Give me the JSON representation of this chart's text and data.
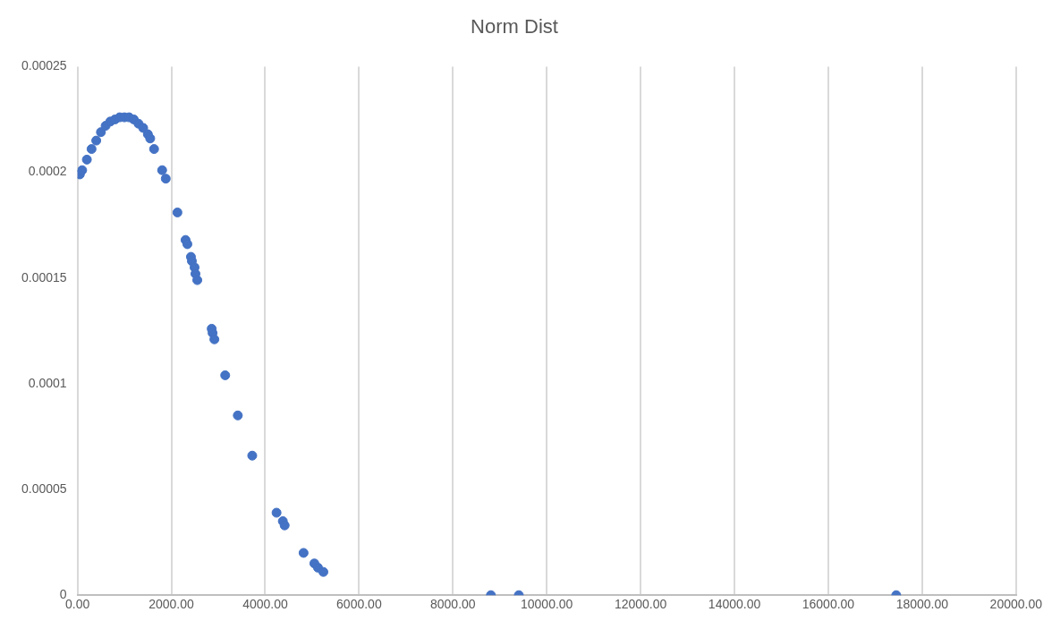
{
  "chart_data": {
    "type": "scatter",
    "title": "Norm Dist",
    "x": [
      50,
      100,
      200,
      300,
      400,
      500,
      600,
      700,
      800,
      900,
      1000,
      1100,
      1200,
      1300,
      1400,
      1500,
      1550,
      1632,
      1804,
      1881,
      2130,
      2303,
      2342,
      2418,
      2438,
      2495,
      2514,
      2553,
      2860,
      2879,
      2917,
      3148,
      3417,
      3724,
      4242,
      4376,
      4415,
      4818,
      5048,
      5125,
      5240,
      8810,
      9405,
      17447
    ],
    "series": [
      {
        "color": "#4472c4",
        "values": [
          0.000199,
          0.000201,
          0.000206,
          0.000211,
          0.000215,
          0.000219,
          0.000222,
          0.000224,
          0.000225,
          0.000226,
          0.000226,
          0.000226,
          0.000225,
          0.000223,
          0.000221,
          0.000218,
          0.000216,
          0.000211,
          0.000201,
          0.000197,
          0.000181,
          0.000168,
          0.000166,
          0.00016,
          0.000158,
          0.000155,
          0.000152,
          0.000149,
          0.000126,
          0.000124,
          0.000121,
          0.000104,
          8.5e-05,
          6.6e-05,
          3.9e-05,
          3.5e-05,
          3.3e-05,
          2e-05,
          1.5e-05,
          1.3e-05,
          1.1e-05,
          0,
          0,
          0
        ]
      }
    ],
    "xlim": [
      0,
      20000
    ],
    "xticks": [
      {
        "value": 0,
        "label": "0.00"
      },
      {
        "value": 2000,
        "label": "2000.00"
      },
      {
        "value": 4000,
        "label": "4000.00"
      },
      {
        "value": 6000,
        "label": "6000.00"
      },
      {
        "value": 8000,
        "label": "8000.00"
      },
      {
        "value": 10000,
        "label": "10000.00"
      },
      {
        "value": 12000,
        "label": "12000.00"
      },
      {
        "value": 14000,
        "label": "14000.00"
      },
      {
        "value": 16000,
        "label": "16000.00"
      },
      {
        "value": 18000,
        "label": "18000.00"
      },
      {
        "value": 20000,
        "label": "20000.00"
      }
    ],
    "ylim": [
      0,
      0.00025
    ],
    "yticks": [
      {
        "value": 0,
        "label": "0"
      },
      {
        "value": 5e-05,
        "label": "0.00005"
      },
      {
        "value": 0.0001,
        "label": "0.0001"
      },
      {
        "value": 0.00015,
        "label": "0.00015"
      },
      {
        "value": 0.0002,
        "label": "0.0002"
      },
      {
        "value": 0.00025,
        "label": "0.00025"
      }
    ],
    "grid": "x",
    "legend": false,
    "marker": "circle"
  }
}
